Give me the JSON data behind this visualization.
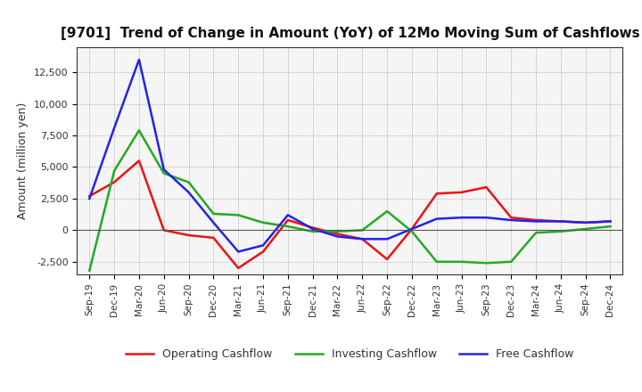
{
  "title": "[9701]  Trend of Change in Amount (YoY) of 12Mo Moving Sum of Cashflows",
  "ylabel": "Amount (million yen)",
  "x_labels": [
    "Sep-19",
    "Dec-19",
    "Mar-20",
    "Jun-20",
    "Sep-20",
    "Dec-20",
    "Mar-21",
    "Jun-21",
    "Sep-21",
    "Dec-21",
    "Mar-22",
    "Jun-22",
    "Sep-22",
    "Dec-22",
    "Mar-23",
    "Jun-23",
    "Sep-23",
    "Dec-23",
    "Mar-24",
    "Jun-24",
    "Sep-24",
    "Dec-24"
  ],
  "operating": [
    2700,
    3800,
    5500,
    0,
    -400,
    -600,
    -3000,
    -1700,
    800,
    200,
    -300,
    -700,
    -2300,
    100,
    2900,
    3000,
    3400,
    1000,
    800,
    700,
    600,
    700
  ],
  "investing": [
    -3200,
    4700,
    7900,
    4500,
    3800,
    1300,
    1200,
    600,
    300,
    -100,
    -100,
    0,
    1500,
    -100,
    -2500,
    -2500,
    -2600,
    -2500,
    -200,
    -100,
    100,
    300
  ],
  "free": [
    2500,
    8100,
    13500,
    4800,
    3000,
    600,
    -1700,
    -1200,
    1200,
    100,
    -500,
    -700,
    -700,
    100,
    900,
    1000,
    1000,
    800,
    700,
    700,
    600,
    700
  ],
  "operating_color": "#ee1111",
  "investing_color": "#22aa22",
  "free_color": "#2222ee",
  "ylim": [
    -3500,
    14500
  ],
  "yticks": [
    -2500,
    0,
    2500,
    5000,
    7500,
    10000,
    12500
  ],
  "background_color": "#ffffff",
  "plot_bg_color": "#f5f5f5",
  "grid_color": "#999999"
}
